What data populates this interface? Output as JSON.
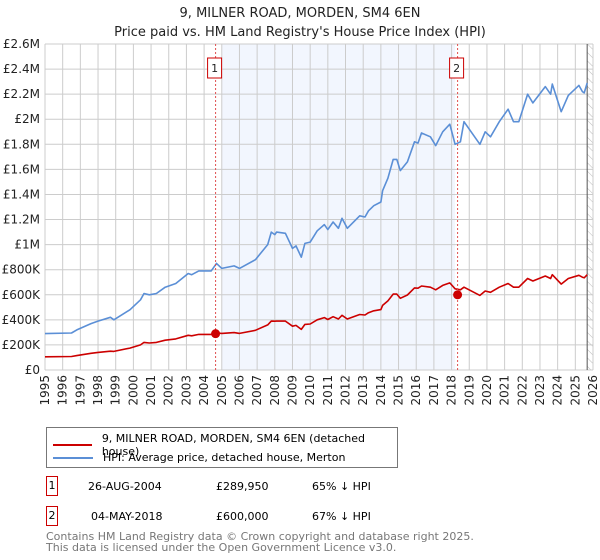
{
  "chart_data": {
    "type": "line",
    "title": "9, MILNER ROAD, MORDEN, SM4 6EN",
    "subtitle": "Price paid vs. HM Land Registry's House Price Index (HPI)",
    "xlabel": "",
    "ylabel": "",
    "xlim": [
      1995,
      2026
    ],
    "ylim": [
      0,
      2600000
    ],
    "grid": true,
    "y_ticks": [
      0,
      200000,
      400000,
      600000,
      800000,
      1000000,
      1200000,
      1400000,
      1600000,
      1800000,
      2000000,
      2200000,
      2400000,
      2600000
    ],
    "y_tick_labels": [
      "£0",
      "£200K",
      "£400K",
      "£600K",
      "£800K",
      "£1M",
      "£1.2M",
      "£1.4M",
      "£1.6M",
      "£1.8M",
      "£2M",
      "£2.2M",
      "£2.4M",
      "£2.6M"
    ],
    "x_tick_labels": [
      "1995",
      "1996",
      "1997",
      "1998",
      "1999",
      "2000",
      "2001",
      "2002",
      "2003",
      "2004",
      "2005",
      "2006",
      "2007",
      "2008",
      "2009",
      "2010",
      "2011",
      "2012",
      "2013",
      "2014",
      "2015",
      "2016",
      "2017",
      "2018",
      "2019",
      "2020",
      "2021",
      "2022",
      "2023",
      "2024",
      "2025",
      "2026"
    ],
    "shaded_range": [
      2005.0,
      2018.2
    ],
    "hatched_from": 2025.67,
    "series": [
      {
        "name": "9, MILNER ROAD, MORDEN, SM4 6EN (detached house)",
        "color": "#cc0000",
        "x": [
          1995.0,
          1996.5,
          1996.8,
          1997.6,
          1998.0,
          1998.7,
          1998.9,
          1999.8,
          2000.4,
          2000.6,
          2000.9,
          2001.3,
          2001.8,
          2002.4,
          2003.1,
          2003.3,
          2003.7,
          2004.4,
          2004.7,
          2005.0,
          2005.7,
          2006.0,
          2006.9,
          2007.6,
          2007.8,
          2008.0,
          2008.1,
          2008.6,
          2009.0,
          2009.2,
          2009.5,
          2009.7,
          2010.0,
          2010.4,
          2010.8,
          2011.0,
          2011.3,
          2011.6,
          2011.8,
          2012.1,
          2012.8,
          2013.1,
          2013.3,
          2013.6,
          2014.0,
          2014.1,
          2014.4,
          2014.7,
          2014.9,
          2015.1,
          2015.5,
          2015.9,
          2016.1,
          2016.3,
          2016.8,
          2017.1,
          2017.5,
          2017.9,
          2018.2,
          2018.5,
          2018.7,
          2019.6,
          2019.9,
          2020.2,
          2020.7,
          2021.2,
          2021.5,
          2021.8,
          2022.3,
          2022.6,
          2023.3,
          2023.6,
          2023.7,
          2024.2,
          2024.6,
          2025.2,
          2025.4,
          2025.5,
          2025.67
        ],
        "values": [
          105000,
          108000,
          115000,
          133000,
          140000,
          150000,
          148000,
          175000,
          200000,
          220000,
          215000,
          220000,
          238000,
          248000,
          277000,
          273000,
          284000,
          284000,
          295000,
          292000,
          298000,
          292000,
          317000,
          360000,
          390000,
          389000,
          390000,
          390000,
          349000,
          356000,
          324000,
          364000,
          367000,
          400000,
          418000,
          403000,
          425000,
          407000,
          436000,
          407000,
          443000,
          439000,
          457000,
          472000,
          482000,
          515000,
          551000,
          605000,
          605000,
          572000,
          598000,
          655000,
          652000,
          670000,
          660000,
          640000,
          675000,
          695000,
          648000,
          640000,
          660000,
          595000,
          630000,
          620000,
          660000,
          690000,
          660000,
          660000,
          730000,
          710000,
          750000,
          730000,
          760000,
          685000,
          730000,
          755000,
          740000,
          735000,
          760000
        ]
      },
      {
        "name": "HPI: Average price, detached house, Merton",
        "color": "#5b8fd6",
        "x": [
          1995.0,
          1996.5,
          1996.8,
          1997.6,
          1998.0,
          1998.7,
          1998.9,
          1999.8,
          2000.4,
          2000.6,
          2000.9,
          2001.3,
          2001.8,
          2002.4,
          2003.1,
          2003.3,
          2003.7,
          2004.4,
          2004.7,
          2005.0,
          2005.7,
          2006.0,
          2006.9,
          2007.6,
          2007.8,
          2008.0,
          2008.1,
          2008.6,
          2009.0,
          2009.2,
          2009.5,
          2009.7,
          2010.0,
          2010.4,
          2010.8,
          2011.0,
          2011.3,
          2011.6,
          2011.8,
          2012.1,
          2012.8,
          2013.1,
          2013.3,
          2013.6,
          2014.0,
          2014.1,
          2014.4,
          2014.7,
          2014.9,
          2015.1,
          2015.5,
          2015.9,
          2016.1,
          2016.3,
          2016.8,
          2017.1,
          2017.5,
          2017.9,
          2018.2,
          2018.5,
          2018.7,
          2019.6,
          2019.9,
          2020.2,
          2020.7,
          2021.2,
          2021.5,
          2021.8,
          2022.3,
          2022.6,
          2023.3,
          2023.6,
          2023.7,
          2024.2,
          2024.6,
          2025.2,
          2025.4,
          2025.5,
          2025.67
        ],
        "values": [
          290000,
          295000,
          320000,
          370000,
          390000,
          420000,
          400000,
          480000,
          560000,
          610000,
          600000,
          610000,
          660000,
          690000,
          770000,
          760000,
          790000,
          790000,
          850000,
          810000,
          830000,
          810000,
          880000,
          1000000,
          1100000,
          1080000,
          1100000,
          1090000,
          970000,
          990000,
          900000,
          1010000,
          1020000,
          1110000,
          1160000,
          1120000,
          1180000,
          1130000,
          1210000,
          1130000,
          1230000,
          1220000,
          1270000,
          1310000,
          1340000,
          1430000,
          1530000,
          1680000,
          1680000,
          1590000,
          1660000,
          1820000,
          1810000,
          1890000,
          1860000,
          1790000,
          1900000,
          1960000,
          1800000,
          1820000,
          1980000,
          1800000,
          1900000,
          1860000,
          1980000,
          2080000,
          1980000,
          1980000,
          2200000,
          2130000,
          2260000,
          2200000,
          2280000,
          2060000,
          2190000,
          2270000,
          2220000,
          2210000,
          2290000
        ]
      }
    ],
    "sales": [
      {
        "label": "1",
        "x": 2004.65,
        "value": 289950
      },
      {
        "label": "2",
        "x": 2018.34,
        "value": 600000
      }
    ],
    "legend": [
      "9, MILNER ROAD, MORDEN, SM4 6EN (detached house)",
      "HPI: Average price, detached house, Merton"
    ],
    "legend_position": "bottom"
  },
  "transactions": [
    {
      "num": "1",
      "date": "26-AUG-2004",
      "price": "£289,950",
      "hpi": "65% ↓ HPI"
    },
    {
      "num": "2",
      "date": "04-MAY-2018",
      "price": "£600,000",
      "hpi": "67% ↓ HPI"
    }
  ],
  "footer": {
    "line1": "Contains HM Land Registry data © Crown copyright and database right 2025.",
    "line2": "This data is licensed under the Open Government Licence v3.0."
  }
}
